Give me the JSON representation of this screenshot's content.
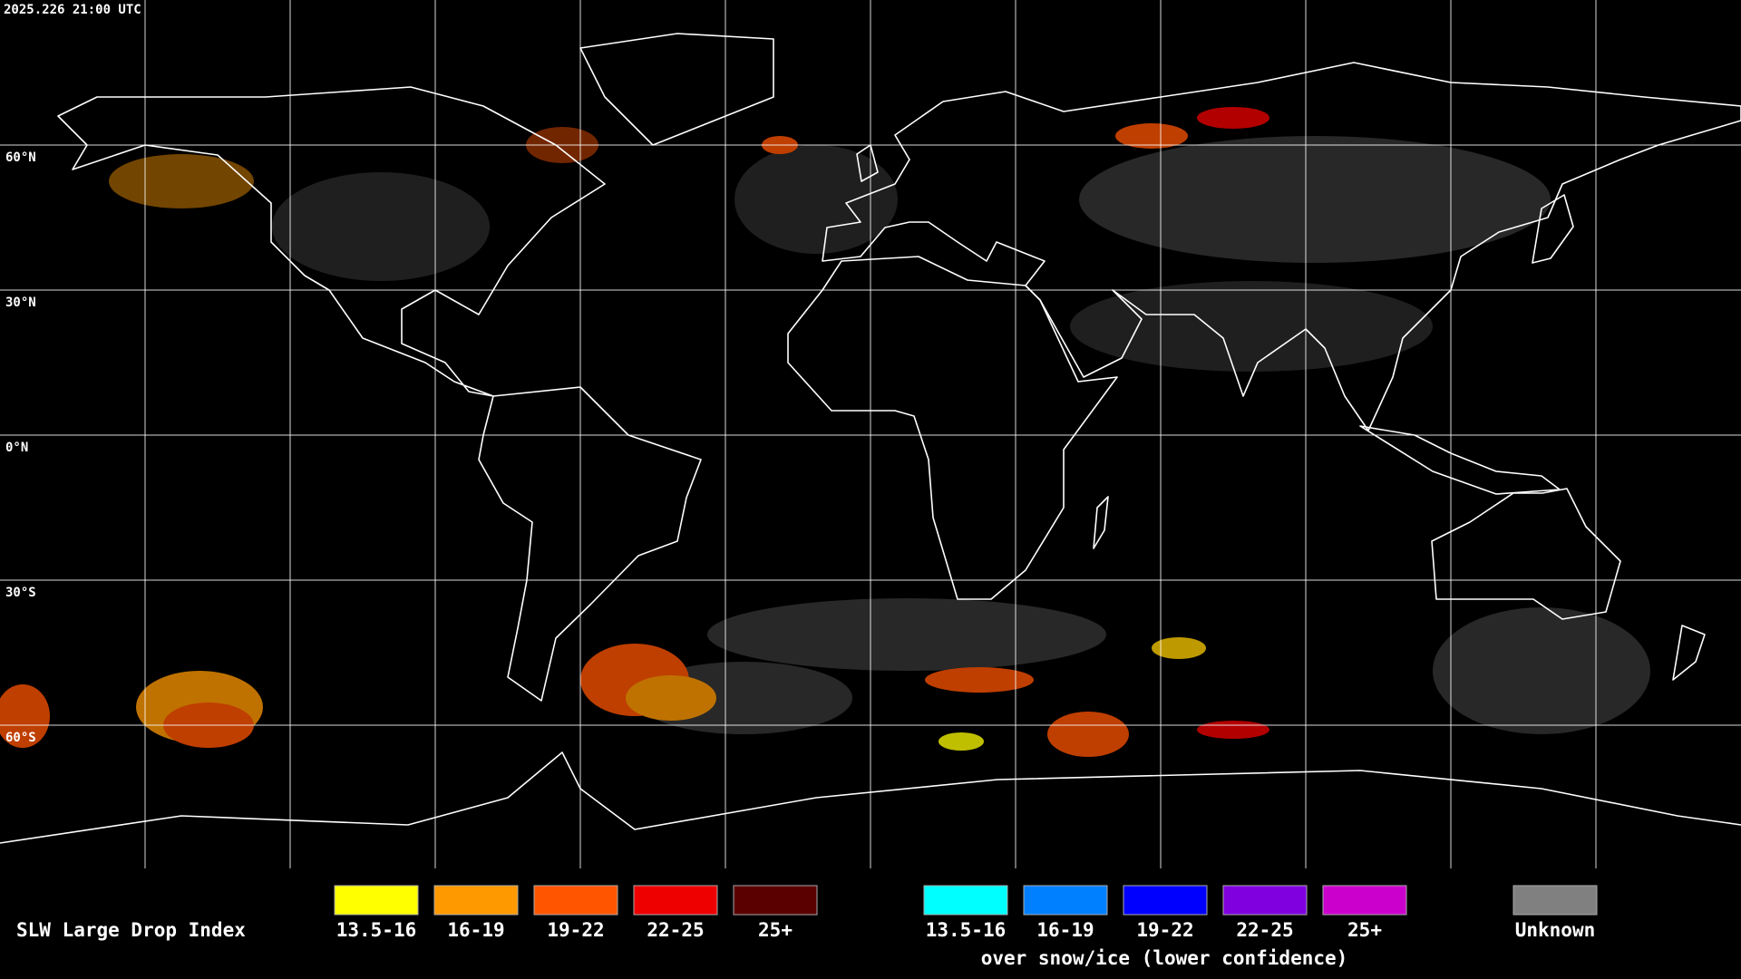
{
  "header": {
    "timestamp": "2025.226 21:00 UTC"
  },
  "map": {
    "latitude_labels": [
      "60°N",
      "30°N",
      "0°N",
      "30°S",
      "60°S"
    ]
  },
  "legend": {
    "title": "SLW Large Drop Index",
    "items": [
      {
        "label": "13.5-16",
        "color": "#ffff00"
      },
      {
        "label": "16-19",
        "color": "#ff9900"
      },
      {
        "label": "19-22",
        "color": "#ff5500"
      },
      {
        "label": "22-25",
        "color": "#ee0000"
      },
      {
        "label": "25+",
        "color": "#5a0000"
      }
    ],
    "snow_ice_items": [
      {
        "label": "13.5-16",
        "color": "#00ffff"
      },
      {
        "label": "16-19",
        "color": "#0080ff"
      },
      {
        "label": "19-22",
        "color": "#0000ff"
      },
      {
        "label": "22-25",
        "color": "#8000e0"
      },
      {
        "label": "25+",
        "color": "#cc00cc"
      }
    ],
    "snow_ice_caption": "over snow/ice (lower confidence)",
    "unknown": {
      "label": "Unknown",
      "color": "#808080"
    }
  }
}
